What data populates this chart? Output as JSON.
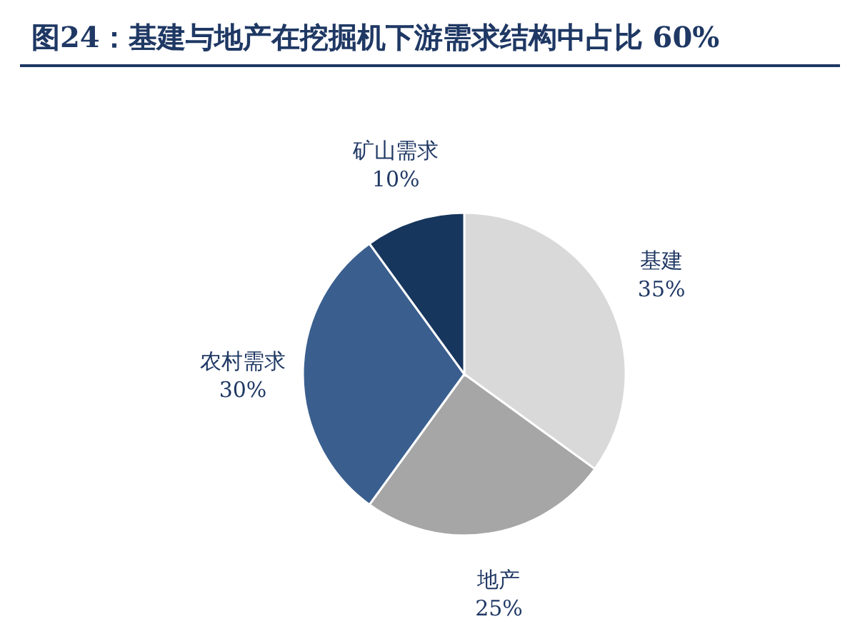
{
  "chart_data": {
    "type": "pie",
    "title": "图24：基建与地产在挖掘机下游需求结构中占比 60%",
    "categories": [
      "基建",
      "地产",
      "农村需求",
      "矿山需求"
    ],
    "values": [
      35,
      25,
      30,
      10
    ],
    "colors": [
      "#d9d9d9",
      "#a6a6a6",
      "#3a5f8f",
      "#17365d"
    ],
    "value_labels": [
      "35%",
      "25%",
      "30%",
      "10%"
    ],
    "legend": false
  }
}
